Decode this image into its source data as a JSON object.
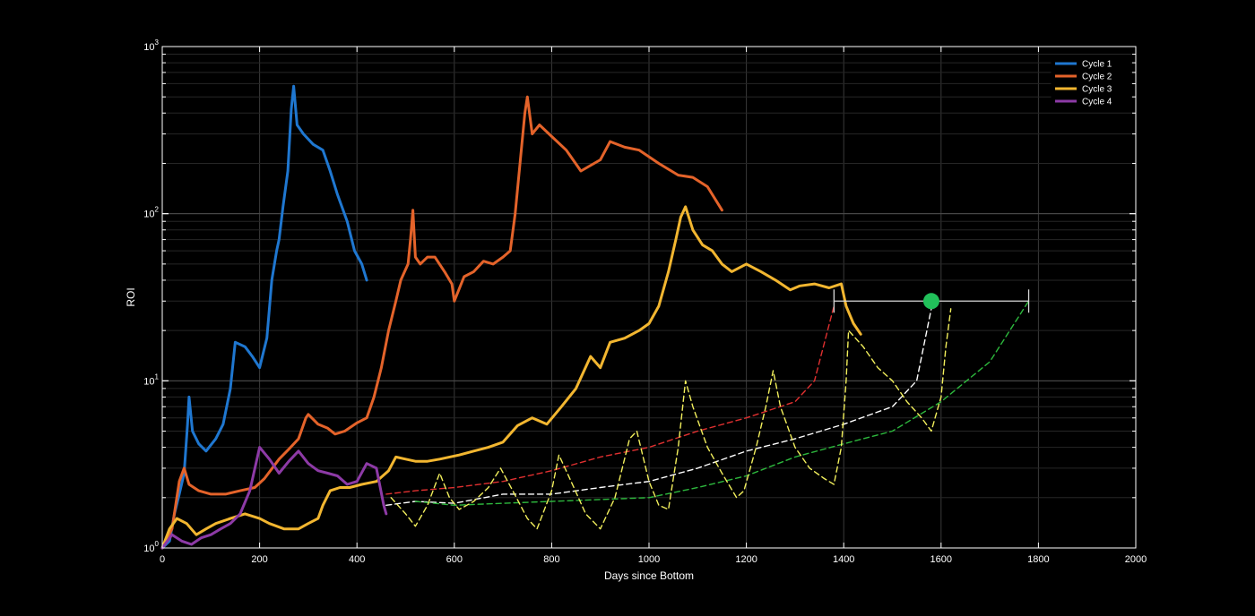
{
  "chart_data": {
    "type": "line",
    "title": "",
    "xlabel": "Days since Bottom",
    "ylabel": "ROI",
    "xlim": [
      0,
      2000
    ],
    "ylim": [
      1,
      1000
    ],
    "yscale": "log",
    "grid": true,
    "legend_position": "top-right",
    "x_ticks": [
      "0",
      "200",
      "400",
      "600",
      "800",
      "1000",
      "1200",
      "1400",
      "1600",
      "1800",
      "2000"
    ],
    "y_ticks": [
      {
        "base": "10",
        "exp": "0"
      },
      {
        "base": "10",
        "exp": "1"
      },
      {
        "base": "10",
        "exp": "2"
      },
      {
        "base": "10",
        "exp": "3"
      }
    ],
    "series": [
      {
        "name": "Cycle 1",
        "color": "#1f77d0",
        "points": [
          [
            0,
            1
          ],
          [
            15,
            1.1
          ],
          [
            25,
            1.6
          ],
          [
            35,
            2.1
          ],
          [
            45,
            2.8
          ],
          [
            52,
            5.5
          ],
          [
            55,
            8
          ],
          [
            62,
            5
          ],
          [
            75,
            4.2
          ],
          [
            90,
            3.8
          ],
          [
            110,
            4.5
          ],
          [
            125,
            5.5
          ],
          [
            140,
            9
          ],
          [
            150,
            17
          ],
          [
            170,
            16
          ],
          [
            185,
            14
          ],
          [
            200,
            12
          ],
          [
            215,
            18
          ],
          [
            225,
            40
          ],
          [
            235,
            60
          ],
          [
            240,
            70
          ],
          [
            248,
            110
          ],
          [
            258,
            180
          ],
          [
            265,
            420
          ],
          [
            270,
            580
          ],
          [
            277,
            340
          ],
          [
            290,
            300
          ],
          [
            310,
            260
          ],
          [
            330,
            240
          ],
          [
            345,
            180
          ],
          [
            360,
            130
          ],
          [
            380,
            90
          ],
          [
            395,
            60
          ],
          [
            410,
            50
          ],
          [
            420,
            40
          ]
        ]
      },
      {
        "name": "Cycle 2",
        "color": "#e4632a",
        "points": [
          [
            0,
            1
          ],
          [
            20,
            1.3
          ],
          [
            35,
            2.5
          ],
          [
            45,
            3
          ],
          [
            55,
            2.4
          ],
          [
            75,
            2.2
          ],
          [
            100,
            2.1
          ],
          [
            130,
            2.1
          ],
          [
            160,
            2.2
          ],
          [
            190,
            2.3
          ],
          [
            210,
            2.6
          ],
          [
            240,
            3.4
          ],
          [
            260,
            3.9
          ],
          [
            280,
            4.5
          ],
          [
            295,
            6
          ],
          [
            300,
            6.3
          ],
          [
            320,
            5.5
          ],
          [
            340,
            5.2
          ],
          [
            355,
            4.8
          ],
          [
            375,
            5
          ],
          [
            400,
            5.6
          ],
          [
            420,
            6
          ],
          [
            435,
            8
          ],
          [
            450,
            12
          ],
          [
            465,
            20
          ],
          [
            480,
            30
          ],
          [
            490,
            40
          ],
          [
            505,
            50
          ],
          [
            510,
            70
          ],
          [
            515,
            105
          ],
          [
            520,
            55
          ],
          [
            530,
            50
          ],
          [
            545,
            55
          ],
          [
            560,
            55
          ],
          [
            580,
            45
          ],
          [
            595,
            38
          ],
          [
            600,
            30
          ],
          [
            620,
            42
          ],
          [
            640,
            45
          ],
          [
            660,
            52
          ],
          [
            680,
            50
          ],
          [
            700,
            55
          ],
          [
            715,
            60
          ],
          [
            725,
            100
          ],
          [
            735,
            200
          ],
          [
            745,
            400
          ],
          [
            750,
            500
          ],
          [
            760,
            300
          ],
          [
            775,
            340
          ],
          [
            800,
            290
          ],
          [
            830,
            240
          ],
          [
            860,
            180
          ],
          [
            900,
            210
          ],
          [
            920,
            270
          ],
          [
            950,
            250
          ],
          [
            980,
            240
          ],
          [
            1020,
            200
          ],
          [
            1060,
            170
          ],
          [
            1090,
            165
          ],
          [
            1120,
            145
          ],
          [
            1150,
            105
          ]
        ]
      },
      {
        "name": "Cycle 3",
        "color": "#f2b630",
        "points": [
          [
            0,
            1
          ],
          [
            15,
            1.3
          ],
          [
            30,
            1.5
          ],
          [
            50,
            1.4
          ],
          [
            70,
            1.2
          ],
          [
            90,
            1.3
          ],
          [
            110,
            1.4
          ],
          [
            140,
            1.5
          ],
          [
            170,
            1.6
          ],
          [
            200,
            1.5
          ],
          [
            220,
            1.4
          ],
          [
            250,
            1.3
          ],
          [
            280,
            1.3
          ],
          [
            300,
            1.4
          ],
          [
            320,
            1.5
          ],
          [
            330,
            1.8
          ],
          [
            345,
            2.2
          ],
          [
            365,
            2.3
          ],
          [
            385,
            2.3
          ],
          [
            410,
            2.4
          ],
          [
            440,
            2.5
          ],
          [
            465,
            2.9
          ],
          [
            480,
            3.5
          ],
          [
            500,
            3.4
          ],
          [
            520,
            3.3
          ],
          [
            545,
            3.3
          ],
          [
            570,
            3.4
          ],
          [
            610,
            3.6
          ],
          [
            640,
            3.8
          ],
          [
            670,
            4
          ],
          [
            700,
            4.3
          ],
          [
            730,
            5.4
          ],
          [
            760,
            6
          ],
          [
            790,
            5.5
          ],
          [
            820,
            7
          ],
          [
            850,
            9
          ],
          [
            880,
            14
          ],
          [
            900,
            12
          ],
          [
            920,
            17
          ],
          [
            950,
            18
          ],
          [
            980,
            20
          ],
          [
            1000,
            22
          ],
          [
            1020,
            28
          ],
          [
            1040,
            45
          ],
          [
            1055,
            70
          ],
          [
            1065,
            95
          ],
          [
            1075,
            110
          ],
          [
            1090,
            80
          ],
          [
            1110,
            65
          ],
          [
            1130,
            60
          ],
          [
            1150,
            50
          ],
          [
            1170,
            45
          ],
          [
            1200,
            50
          ],
          [
            1230,
            45
          ],
          [
            1260,
            40
          ],
          [
            1290,
            35
          ],
          [
            1310,
            37
          ],
          [
            1340,
            38
          ],
          [
            1370,
            36
          ],
          [
            1395,
            38
          ],
          [
            1405,
            28
          ],
          [
            1420,
            22
          ],
          [
            1435,
            19
          ]
        ]
      },
      {
        "name": "Cycle 4",
        "color": "#8d3aa6",
        "points": [
          [
            0,
            1
          ],
          [
            20,
            1.2
          ],
          [
            40,
            1.1
          ],
          [
            60,
            1.05
          ],
          [
            80,
            1.15
          ],
          [
            100,
            1.2
          ],
          [
            120,
            1.3
          ],
          [
            140,
            1.4
          ],
          [
            160,
            1.6
          ],
          [
            180,
            2.2
          ],
          [
            200,
            4
          ],
          [
            220,
            3.4
          ],
          [
            240,
            2.8
          ],
          [
            260,
            3.3
          ],
          [
            280,
            3.8
          ],
          [
            300,
            3.2
          ],
          [
            320,
            2.9
          ],
          [
            340,
            2.8
          ],
          [
            360,
            2.7
          ],
          [
            380,
            2.4
          ],
          [
            400,
            2.5
          ],
          [
            420,
            3.2
          ],
          [
            440,
            3
          ],
          [
            455,
            1.8
          ],
          [
            460,
            1.6
          ]
        ]
      },
      {
        "color": "#e03030",
        "dash": true,
        "points": [
          [
            460,
            2.1
          ],
          [
            520,
            2.2
          ],
          [
            600,
            2.3
          ],
          [
            700,
            2.5
          ],
          [
            800,
            2.9
          ],
          [
            900,
            3.5
          ],
          [
            1000,
            4
          ],
          [
            1100,
            5
          ],
          [
            1200,
            6
          ],
          [
            1300,
            7.5
          ],
          [
            1340,
            10
          ],
          [
            1380,
            28
          ]
        ]
      },
      {
        "color": "#ffffff",
        "dash": true,
        "points": [
          [
            460,
            1.8
          ],
          [
            520,
            1.9
          ],
          [
            600,
            1.85
          ],
          [
            700,
            2.1
          ],
          [
            800,
            2.1
          ],
          [
            900,
            2.3
          ],
          [
            1000,
            2.5
          ],
          [
            1100,
            3
          ],
          [
            1200,
            3.8
          ],
          [
            1300,
            4.5
          ],
          [
            1400,
            5.5
          ],
          [
            1500,
            7
          ],
          [
            1550,
            10
          ],
          [
            1580,
            27
          ]
        ]
      },
      {
        "color": "#2db83d",
        "dash": true,
        "points": [
          [
            520,
            1.9
          ],
          [
            600,
            1.8
          ],
          [
            700,
            1.85
          ],
          [
            800,
            1.9
          ],
          [
            900,
            1.95
          ],
          [
            1000,
            2
          ],
          [
            1100,
            2.3
          ],
          [
            1200,
            2.7
          ],
          [
            1300,
            3.5
          ],
          [
            1400,
            4.2
          ],
          [
            1500,
            5
          ],
          [
            1600,
            7.5
          ],
          [
            1700,
            13
          ],
          [
            1780,
            30
          ]
        ]
      },
      {
        "color": "#f2ef5c",
        "dash": true,
        "points": [
          [
            470,
            2
          ],
          [
            500,
            1.6
          ],
          [
            520,
            1.35
          ],
          [
            545,
            1.8
          ],
          [
            570,
            2.8
          ],
          [
            590,
            2
          ],
          [
            610,
            1.7
          ],
          [
            640,
            1.9
          ],
          [
            670,
            2.3
          ],
          [
            695,
            3
          ],
          [
            720,
            2.2
          ],
          [
            750,
            1.5
          ],
          [
            770,
            1.3
          ],
          [
            800,
            2.2
          ],
          [
            815,
            3.6
          ],
          [
            840,
            2.5
          ],
          [
            870,
            1.6
          ],
          [
            900,
            1.3
          ],
          [
            930,
            2
          ],
          [
            960,
            4.5
          ],
          [
            975,
            5
          ],
          [
            1000,
            2.5
          ],
          [
            1020,
            1.8
          ],
          [
            1040,
            1.7
          ],
          [
            1060,
            4
          ],
          [
            1075,
            10
          ],
          [
            1090,
            7
          ],
          [
            1120,
            4
          ],
          [
            1150,
            2.8
          ],
          [
            1180,
            2
          ],
          [
            1195,
            2.2
          ],
          [
            1220,
            4
          ],
          [
            1240,
            7
          ],
          [
            1255,
            11.5
          ],
          [
            1270,
            7
          ],
          [
            1300,
            4
          ],
          [
            1330,
            3
          ],
          [
            1360,
            2.6
          ],
          [
            1380,
            2.4
          ],
          [
            1395,
            4
          ],
          [
            1405,
            10
          ],
          [
            1410,
            20
          ],
          [
            1440,
            16
          ],
          [
            1470,
            12
          ],
          [
            1500,
            10
          ],
          [
            1530,
            7.5
          ],
          [
            1560,
            6
          ],
          [
            1580,
            5
          ],
          [
            1600,
            8
          ],
          [
            1610,
            16
          ],
          [
            1620,
            27
          ]
        ]
      }
    ],
    "annotation": {
      "range_x": [
        1380,
        1780
      ],
      "y": 30,
      "marker": {
        "x": 1580,
        "y": 30,
        "color": "#21c05a"
      }
    },
    "colors": {
      "background": "#000000",
      "axis": "#ffffff",
      "grid": "#3a3a3a"
    }
  }
}
